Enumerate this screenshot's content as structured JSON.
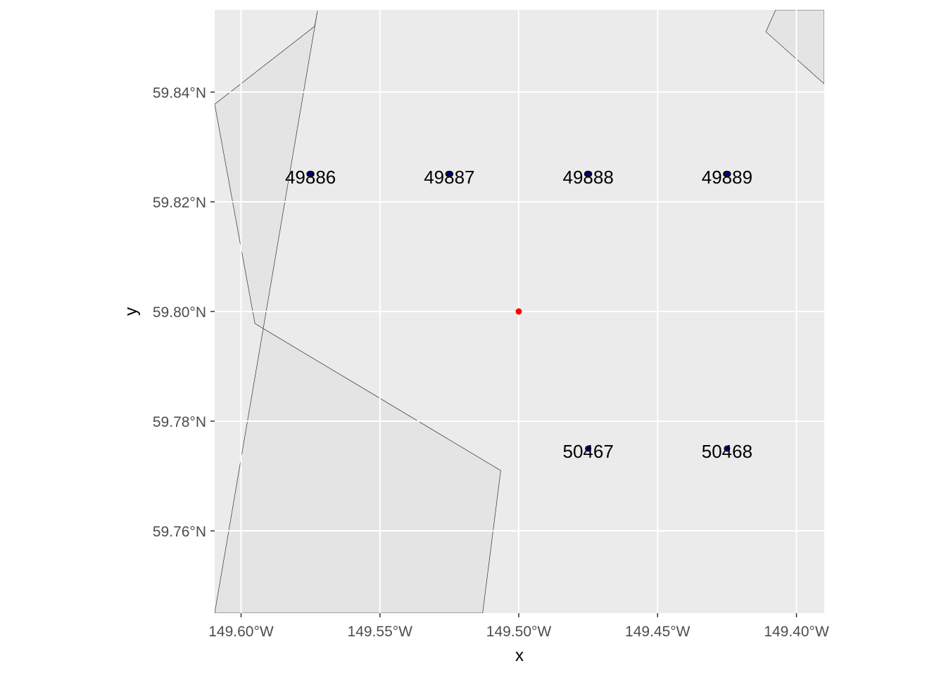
{
  "chart_data": {
    "type": "scatter",
    "xlabel": "x",
    "ylabel": "y",
    "xlim": [
      -149.6095,
      -149.39
    ],
    "ylim": [
      59.745,
      59.855
    ],
    "x_ticks": [
      {
        "value": -149.6,
        "label": "149.60°W"
      },
      {
        "value": -149.55,
        "label": "149.55°W"
      },
      {
        "value": -149.5,
        "label": "149.50°W"
      },
      {
        "value": -149.45,
        "label": "149.45°W"
      },
      {
        "value": -149.4,
        "label": "149.40°W"
      }
    ],
    "y_ticks": [
      {
        "value": 59.76,
        "label": "59.76°N"
      },
      {
        "value": 59.78,
        "label": "59.78°N"
      },
      {
        "value": 59.8,
        "label": "59.80°N"
      },
      {
        "value": 59.82,
        "label": "59.82°N"
      },
      {
        "value": 59.84,
        "label": "59.84°N"
      }
    ],
    "grid": true,
    "colors": {
      "panel_background": "#ebebeb",
      "land_fill": "#e4e4e4",
      "gridline": "#ffffff",
      "station_points": "#00008b",
      "center_point": "#ff0000",
      "outline": "#333333"
    },
    "land_polygons": [
      {
        "name": "land-west",
        "coords": [
          [
            -149.5725,
            59.8548
          ],
          [
            -149.5735,
            59.852
          ],
          [
            -149.6095,
            59.8378
          ],
          [
            -149.595,
            59.7978
          ],
          [
            -149.5065,
            59.771
          ],
          [
            -149.513,
            59.745
          ],
          [
            -149.6095,
            59.745
          ]
        ]
      },
      {
        "name": "land-northeast",
        "coords": [
          [
            -149.4075,
            59.855
          ],
          [
            -149.411,
            59.851
          ],
          [
            -149.39,
            59.8415
          ],
          [
            -149.39,
            59.855
          ]
        ]
      }
    ],
    "station_points": [
      {
        "label": "49886",
        "x": -149.575,
        "y": 59.825
      },
      {
        "label": "49887",
        "x": -149.525,
        "y": 59.825
      },
      {
        "label": "49888",
        "x": -149.475,
        "y": 59.825
      },
      {
        "label": "49889",
        "x": -149.425,
        "y": 59.825
      },
      {
        "label": "50467",
        "x": -149.475,
        "y": 59.775
      },
      {
        "label": "50468",
        "x": -149.425,
        "y": 59.775
      }
    ],
    "center_point": {
      "x": -149.5,
      "y": 59.8
    }
  }
}
